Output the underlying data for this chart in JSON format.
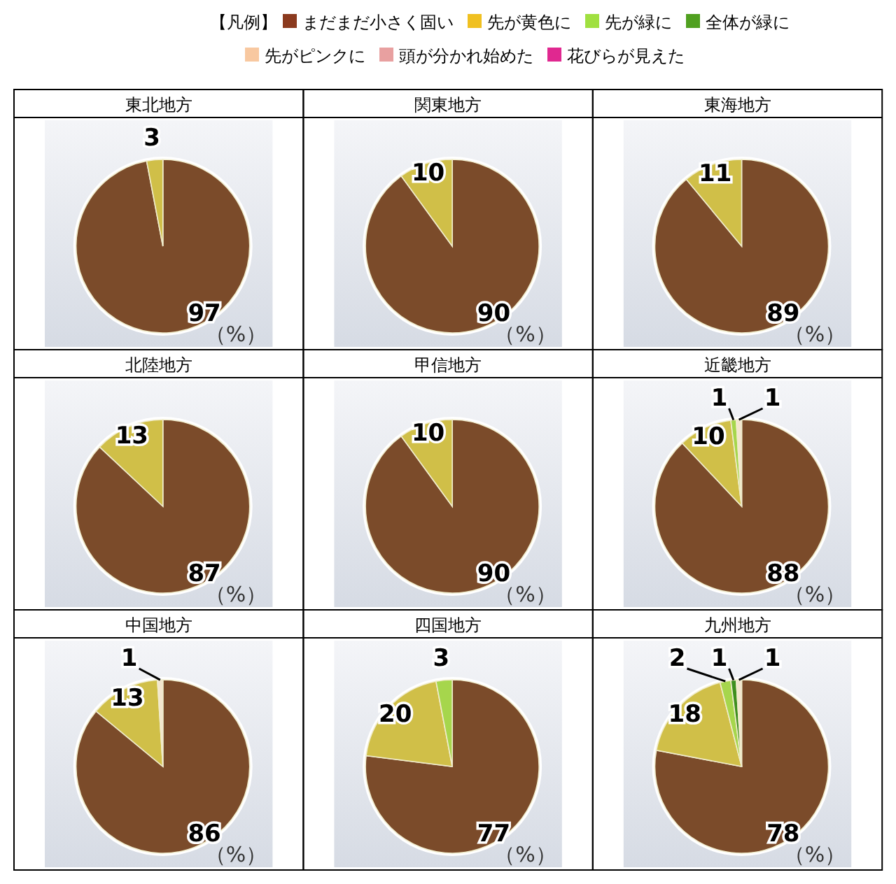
{
  "chart_data": [
    {
      "type": "other",
      "title": "【凡例】",
      "categories": [
        "まだまだ小さく固い",
        "先が黄色に",
        "先が緑に",
        "全体が緑に",
        "先がピンクに",
        "頭が分かれ始めた",
        "花びらが見えた"
      ],
      "colors": [
        "#8b3a1e",
        "#f0c020",
        "#a0e040",
        "#50a020",
        "#f8c8a0",
        "#e8a0a0",
        "#e02890"
      ]
    },
    {
      "type": "pie",
      "title": "東北地方",
      "categories": [
        null,
        null
      ],
      "values": [
        97,
        3
      ],
      "colors": [
        "#7b4b2a",
        "#d0bf48"
      ],
      "data_labels": true,
      "annotations": [
        "（%）"
      ]
    },
    {
      "type": "pie",
      "title": "関東地方",
      "categories": [
        null,
        null
      ],
      "values": [
        90,
        10
      ],
      "colors": [
        "#7b4b2a",
        "#d0bf48"
      ],
      "data_labels": true,
      "annotations": [
        "（%）"
      ]
    },
    {
      "type": "pie",
      "title": "東海地方",
      "categories": [
        null,
        null
      ],
      "values": [
        89,
        11
      ],
      "colors": [
        "#7b4b2a",
        "#d0bf48"
      ],
      "data_labels": true,
      "annotations": [
        "（%）"
      ]
    },
    {
      "type": "pie",
      "title": "北陸地方",
      "categories": [
        null,
        null
      ],
      "values": [
        87,
        13
      ],
      "colors": [
        "#7b4b2a",
        "#d0bf48"
      ],
      "data_labels": true,
      "annotations": [
        "（%）"
      ]
    },
    {
      "type": "pie",
      "title": "甲信地方",
      "categories": [
        null,
        null
      ],
      "values": [
        90,
        10
      ],
      "colors": [
        "#7b4b2a",
        "#d0bf48"
      ],
      "data_labels": true,
      "annotations": [
        "（%）"
      ]
    },
    {
      "type": "pie",
      "title": "近畿地方",
      "categories": [
        null,
        null,
        null,
        null
      ],
      "values": [
        88,
        10,
        1,
        1
      ],
      "colors": [
        "#7b4b2a",
        "#d0bf48",
        "#a6d64c",
        "#f3e6cf"
      ],
      "data_labels": true,
      "annotations": [
        "（%）"
      ]
    },
    {
      "type": "pie",
      "title": "中国地方",
      "categories": [
        null,
        null,
        null
      ],
      "values": [
        86,
        13,
        1
      ],
      "colors": [
        "#7b4b2a",
        "#d0bf48",
        "#f3e6cf"
      ],
      "data_labels": true,
      "annotations": [
        "（%）"
      ]
    },
    {
      "type": "pie",
      "title": "四国地方",
      "categories": [
        null,
        null,
        null
      ],
      "values": [
        77,
        20,
        3
      ],
      "colors": [
        "#7b4b2a",
        "#d0bf48",
        "#a6d64c"
      ],
      "data_labels": true,
      "annotations": [
        "（%）"
      ]
    },
    {
      "type": "pie",
      "title": "九州地方",
      "categories": [
        null,
        null,
        null,
        null,
        null
      ],
      "values": [
        78,
        18,
        2,
        1,
        1
      ],
      "colors": [
        "#7b4b2a",
        "#d0bf48",
        "#a6d64c",
        "#3f8f1f",
        "#f3e6cf"
      ],
      "data_labels": true,
      "annotations": [
        "（%）"
      ]
    }
  ]
}
